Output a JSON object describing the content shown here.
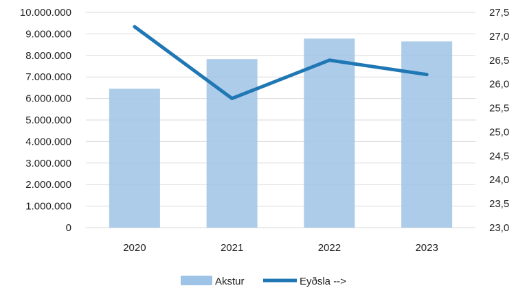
{
  "chart_data": {
    "type": "bar",
    "title": "",
    "xlabel": "",
    "categories": [
      "2020",
      "2021",
      "2022",
      "2023"
    ],
    "y_left": {
      "range": [
        0,
        10000000
      ],
      "ticks": [
        "0",
        "1.000.000",
        "2.000.000",
        "3.000.000",
        "4.000.000",
        "5.000.000",
        "6.000.000",
        "7.000.000",
        "8.000.000",
        "9.000.000",
        "10.000.000"
      ]
    },
    "y_right": {
      "range": [
        23.0,
        27.5
      ],
      "ticks": [
        "23,0",
        "23,5",
        "24,0",
        "24,5",
        "25,0",
        "25,5",
        "26,0",
        "26,5",
        "27,0",
        "27,5"
      ]
    },
    "series": [
      {
        "name": "Akstur",
        "type": "bar",
        "axis": "left",
        "color": "#9dc3e6",
        "values": [
          6450000,
          7830000,
          8780000,
          8650000
        ]
      },
      {
        "name": "Eyðsla -->",
        "type": "line",
        "axis": "right",
        "color": "#1f77b4",
        "values": [
          27.2,
          25.7,
          26.5,
          26.2
        ]
      }
    ],
    "grid": true,
    "legend": "bottom-center"
  }
}
